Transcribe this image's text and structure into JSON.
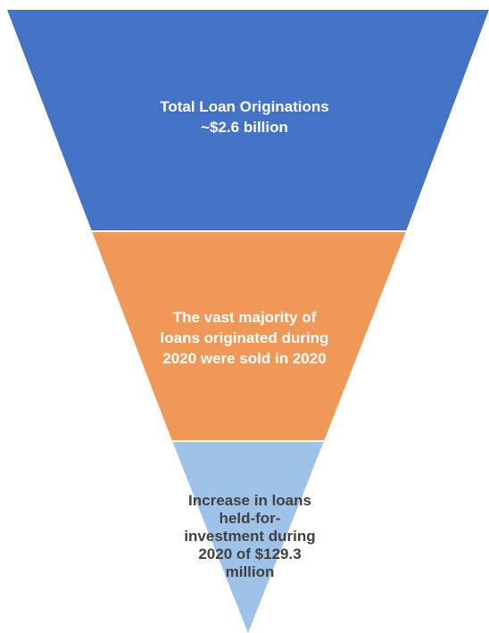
{
  "colors": {
    "top": "#4472C4",
    "middle": "#F09858",
    "bottom": "#9FC3E8",
    "divider": "#ffffff",
    "bottom_text": "#404040",
    "light_text": "#ffffff"
  },
  "funnel": {
    "stages": [
      {
        "lines": [
          "Total Loan Originations",
          "~$2.6 billion"
        ]
      },
      {
        "lines": [
          "The vast majority of",
          "loans originated during",
          "2020 were sold in 2020"
        ]
      },
      {
        "lines": [
          "Increase in loans",
          "held-for-",
          "investment during",
          "2020 of $129.3",
          "million"
        ]
      }
    ]
  }
}
